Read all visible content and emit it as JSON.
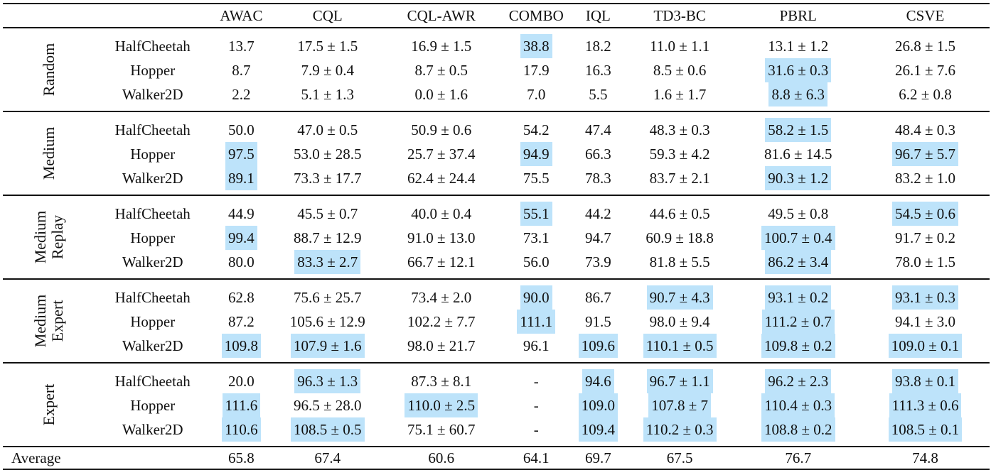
{
  "table": {
    "highlight_color": "#BDE3FA",
    "columns": [
      "AWAC",
      "CQL",
      "CQL-AWR",
      "COMBO",
      "IQL",
      "TD3-BC",
      "PBRL",
      "CSVE"
    ],
    "groups": [
      {
        "label_lines": [
          "Random"
        ],
        "rows": [
          {
            "env": "HalfCheetah",
            "cells": [
              {
                "v": "13.7",
                "hl": false
              },
              {
                "v": "17.5 ± 1.5",
                "hl": false
              },
              {
                "v": "16.9 ± 1.5",
                "hl": false
              },
              {
                "v": "38.8",
                "hl": true
              },
              {
                "v": "18.2",
                "hl": false
              },
              {
                "v": "11.0 ± 1.1",
                "hl": false
              },
              {
                "v": "13.1 ± 1.2",
                "hl": false
              },
              {
                "v": "26.8 ± 1.5",
                "hl": false
              }
            ]
          },
          {
            "env": "Hopper",
            "cells": [
              {
                "v": "8.7",
                "hl": false
              },
              {
                "v": "7.9 ± 0.4",
                "hl": false
              },
              {
                "v": "8.7 ± 0.5",
                "hl": false
              },
              {
                "v": "17.9",
                "hl": false
              },
              {
                "v": "16.3",
                "hl": false
              },
              {
                "v": "8.5 ± 0.6",
                "hl": false
              },
              {
                "v": "31.6 ± 0.3",
                "hl": true
              },
              {
                "v": "26.1 ± 7.6",
                "hl": false
              }
            ]
          },
          {
            "env": "Walker2D",
            "cells": [
              {
                "v": "2.2",
                "hl": false
              },
              {
                "v": "5.1 ± 1.3",
                "hl": false
              },
              {
                "v": "0.0 ± 1.6",
                "hl": false
              },
              {
                "v": "7.0",
                "hl": false
              },
              {
                "v": "5.5",
                "hl": false
              },
              {
                "v": "1.6 ± 1.7",
                "hl": false
              },
              {
                "v": "8.8 ± 6.3",
                "hl": true
              },
              {
                "v": "6.2 ± 0.8",
                "hl": false
              }
            ]
          }
        ]
      },
      {
        "label_lines": [
          "Medium"
        ],
        "rows": [
          {
            "env": "HalfCheetah",
            "cells": [
              {
                "v": "50.0",
                "hl": false
              },
              {
                "v": "47.0 ± 0.5",
                "hl": false
              },
              {
                "v": "50.9 ± 0.6",
                "hl": false
              },
              {
                "v": "54.2",
                "hl": false
              },
              {
                "v": "47.4",
                "hl": false
              },
              {
                "v": "48.3 ± 0.3",
                "hl": false
              },
              {
                "v": "58.2 ± 1.5",
                "hl": true
              },
              {
                "v": "48.4 ± 0.3",
                "hl": false
              }
            ]
          },
          {
            "env": "Hopper",
            "cells": [
              {
                "v": "97.5",
                "hl": true
              },
              {
                "v": "53.0 ± 28.5",
                "hl": false
              },
              {
                "v": "25.7 ± 37.4",
                "hl": false
              },
              {
                "v": "94.9",
                "hl": true
              },
              {
                "v": "66.3",
                "hl": false
              },
              {
                "v": "59.3 ± 4.2",
                "hl": false
              },
              {
                "v": "81.6 ± 14.5",
                "hl": false
              },
              {
                "v": "96.7 ± 5.7",
                "hl": true
              }
            ]
          },
          {
            "env": "Walker2D",
            "cells": [
              {
                "v": "89.1",
                "hl": true
              },
              {
                "v": "73.3 ± 17.7",
                "hl": false
              },
              {
                "v": "62.4 ± 24.4",
                "hl": false
              },
              {
                "v": "75.5",
                "hl": false
              },
              {
                "v": "78.3",
                "hl": false
              },
              {
                "v": "83.7 ± 2.1",
                "hl": false
              },
              {
                "v": "90.3 ± 1.2",
                "hl": true
              },
              {
                "v": "83.2 ± 1.0",
                "hl": false
              }
            ]
          }
        ]
      },
      {
        "label_lines": [
          "Medium",
          "Replay"
        ],
        "rows": [
          {
            "env": "HalfCheetah",
            "cells": [
              {
                "v": "44.9",
                "hl": false
              },
              {
                "v": "45.5 ± 0.7",
                "hl": false
              },
              {
                "v": "40.0 ± 0.4",
                "hl": false
              },
              {
                "v": "55.1",
                "hl": true
              },
              {
                "v": "44.2",
                "hl": false
              },
              {
                "v": "44.6 ± 0.5",
                "hl": false
              },
              {
                "v": "49.5 ± 0.8",
                "hl": false
              },
              {
                "v": "54.5 ± 0.6",
                "hl": true
              }
            ]
          },
          {
            "env": "Hopper",
            "cells": [
              {
                "v": "99.4",
                "hl": true
              },
              {
                "v": "88.7 ± 12.9",
                "hl": false
              },
              {
                "v": "91.0 ± 13.0",
                "hl": false
              },
              {
                "v": "73.1",
                "hl": false
              },
              {
                "v": "94.7",
                "hl": false
              },
              {
                "v": "60.9 ± 18.8",
                "hl": false
              },
              {
                "v": "100.7 ± 0.4",
                "hl": true
              },
              {
                "v": "91.7 ± 0.2",
                "hl": false
              }
            ]
          },
          {
            "env": "Walker2D",
            "cells": [
              {
                "v": "80.0",
                "hl": false
              },
              {
                "v": "83.3 ± 2.7",
                "hl": true
              },
              {
                "v": "66.7 ± 12.1",
                "hl": false
              },
              {
                "v": "56.0",
                "hl": false
              },
              {
                "v": "73.9",
                "hl": false
              },
              {
                "v": "81.8 ± 5.5",
                "hl": false
              },
              {
                "v": "86.2 ± 3.4",
                "hl": true
              },
              {
                "v": "78.0 ± 1.5",
                "hl": false
              }
            ]
          }
        ]
      },
      {
        "label_lines": [
          "Medium",
          "Expert"
        ],
        "rows": [
          {
            "env": "HalfCheetah",
            "cells": [
              {
                "v": "62.8",
                "hl": false
              },
              {
                "v": "75.6 ± 25.7",
                "hl": false
              },
              {
                "v": "73.4 ± 2.0",
                "hl": false
              },
              {
                "v": "90.0",
                "hl": true
              },
              {
                "v": "86.7",
                "hl": false
              },
              {
                "v": "90.7 ± 4.3",
                "hl": true
              },
              {
                "v": "93.1 ± 0.2",
                "hl": true
              },
              {
                "v": "93.1 ± 0.3",
                "hl": true
              }
            ]
          },
          {
            "env": "Hopper",
            "cells": [
              {
                "v": "87.2",
                "hl": false
              },
              {
                "v": "105.6 ± 12.9",
                "hl": false
              },
              {
                "v": "102.2 ± 7.7",
                "hl": false
              },
              {
                "v": "111.1",
                "hl": true
              },
              {
                "v": "91.5",
                "hl": false
              },
              {
                "v": "98.0 ± 9.4",
                "hl": false
              },
              {
                "v": "111.2 ± 0.7",
                "hl": true
              },
              {
                "v": "94.1 ± 3.0",
                "hl": false
              }
            ]
          },
          {
            "env": "Walker2D",
            "cells": [
              {
                "v": "109.8",
                "hl": true
              },
              {
                "v": "107.9 ± 1.6",
                "hl": true
              },
              {
                "v": "98.0 ± 21.7",
                "hl": false
              },
              {
                "v": "96.1",
                "hl": false
              },
              {
                "v": "109.6",
                "hl": true
              },
              {
                "v": "110.1 ± 0.5",
                "hl": true
              },
              {
                "v": "109.8 ± 0.2",
                "hl": true
              },
              {
                "v": "109.0 ± 0.1",
                "hl": true
              }
            ]
          }
        ]
      },
      {
        "label_lines": [
          "Expert"
        ],
        "rows": [
          {
            "env": "HalfCheetah",
            "cells": [
              {
                "v": "20.0",
                "hl": false
              },
              {
                "v": "96.3 ± 1.3",
                "hl": true
              },
              {
                "v": "87.3 ± 8.1",
                "hl": false
              },
              {
                "v": "-",
                "hl": false
              },
              {
                "v": "94.6",
                "hl": true
              },
              {
                "v": "96.7 ± 1.1",
                "hl": true
              },
              {
                "v": "96.2 ± 2.3",
                "hl": true
              },
              {
                "v": "93.8 ± 0.1",
                "hl": true
              }
            ]
          },
          {
            "env": "Hopper",
            "cells": [
              {
                "v": "111.6",
                "hl": true
              },
              {
                "v": "96.5 ± 28.0",
                "hl": false
              },
              {
                "v": "110.0 ± 2.5",
                "hl": true
              },
              {
                "v": "-",
                "hl": false
              },
              {
                "v": "109.0",
                "hl": true
              },
              {
                "v": "107.8 ± 7",
                "hl": true
              },
              {
                "v": "110.4 ± 0.3",
                "hl": true
              },
              {
                "v": "111.3 ± 0.6",
                "hl": true
              }
            ]
          },
          {
            "env": "Walker2D",
            "cells": [
              {
                "v": "110.6",
                "hl": true
              },
              {
                "v": "108.5 ± 0.5",
                "hl": true
              },
              {
                "v": "75.1 ± 60.7",
                "hl": false
              },
              {
                "v": "-",
                "hl": false
              },
              {
                "v": "109.4",
                "hl": true
              },
              {
                "v": "110.2 ± 0.3",
                "hl": true
              },
              {
                "v": "108.8 ± 0.2",
                "hl": true
              },
              {
                "v": "108.5 ± 0.1",
                "hl": true
              }
            ]
          }
        ]
      }
    ],
    "average": {
      "label": "Average",
      "values": [
        "65.8",
        "67.4",
        "60.6",
        "64.1",
        "69.7",
        "67.5",
        "76.7",
        "74.8"
      ]
    }
  }
}
